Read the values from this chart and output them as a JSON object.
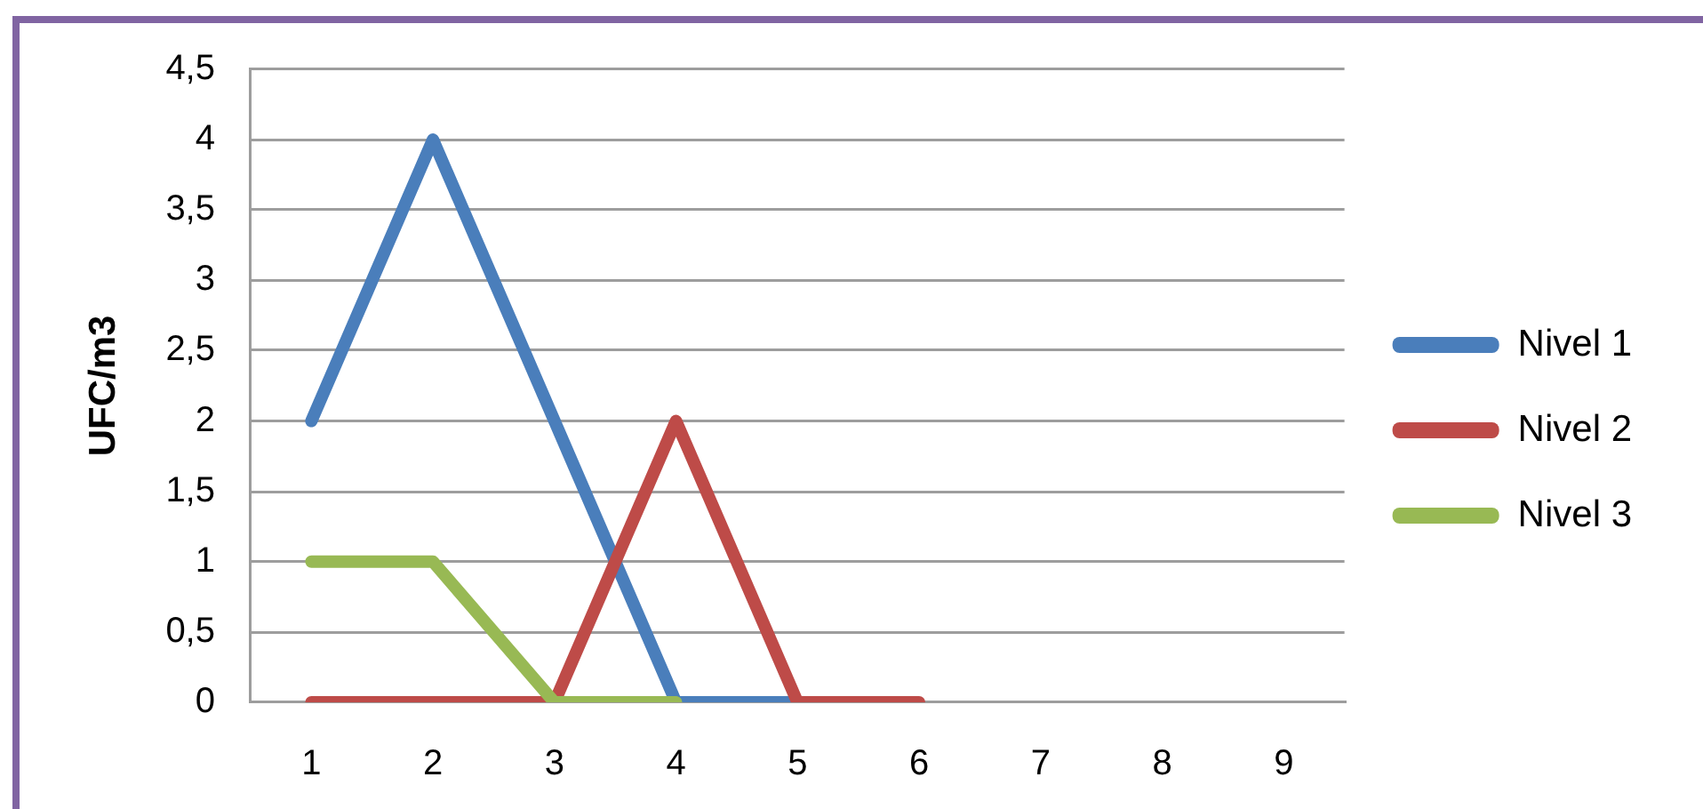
{
  "chart_data": {
    "type": "line",
    "ylabel": "UFC/m3",
    "categories": [
      "1",
      "2",
      "3",
      "4",
      "5",
      "6",
      "7",
      "8",
      "9"
    ],
    "series": [
      {
        "name": "Nivel 1",
        "color": "#4a7ebb",
        "values": [
          2,
          4,
          2,
          0,
          0,
          null,
          null,
          null,
          null
        ]
      },
      {
        "name": "Nivel 2",
        "color": "#be4b48",
        "values": [
          0,
          0,
          0,
          2,
          0,
          0,
          null,
          null,
          null
        ]
      },
      {
        "name": "Nivel 3",
        "color": "#98b954",
        "values": [
          1,
          1,
          0,
          0,
          null,
          null,
          null,
          null,
          null
        ]
      }
    ],
    "ylim": [
      0,
      4.5
    ],
    "yticks": [
      0,
      {
        "value": 0.5,
        "label": "0,5"
      },
      1,
      {
        "value": 1.5,
        "label": "1,5"
      },
      2,
      {
        "value": 2.5,
        "label": "2,5"
      },
      3,
      {
        "value": 3.5,
        "label": "3,5"
      },
      4,
      {
        "value": 4.5,
        "label": "4,5"
      }
    ],
    "grid": "y",
    "legend": "right",
    "marker": "none",
    "line_style": "solid"
  }
}
